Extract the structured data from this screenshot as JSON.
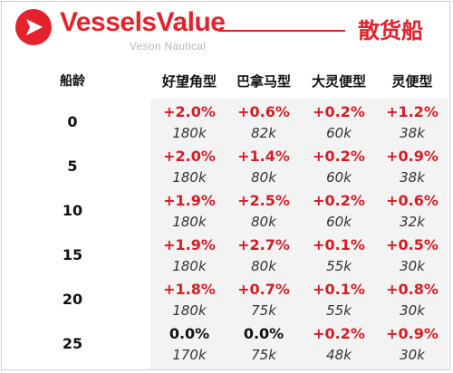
{
  "header": {
    "brand": "VesselsValue",
    "brand_sub": "Veson Nautical",
    "title": "散货船"
  },
  "table": {
    "age_header": "船龄",
    "columns": [
      "好望角型",
      "巴拿马型",
      "大灵便型",
      "灵便型"
    ],
    "rows": [
      {
        "age": "0",
        "changes": [
          "+2.0%",
          "+0.6%",
          "+0.2%",
          "+1.2%"
        ],
        "values": [
          "180k",
          "82k",
          "60k",
          "38k"
        ]
      },
      {
        "age": "5",
        "changes": [
          "+2.0%",
          "+1.4%",
          "+0.2%",
          "+0.9%"
        ],
        "values": [
          "180k",
          "80k",
          "60k",
          "38k"
        ]
      },
      {
        "age": "10",
        "changes": [
          "+1.9%",
          "+2.5%",
          "+0.2%",
          "+0.6%"
        ],
        "values": [
          "180k",
          "80k",
          "60k",
          "32k"
        ]
      },
      {
        "age": "15",
        "changes": [
          "+1.9%",
          "+2.7%",
          "+0.1%",
          "+0.5%"
        ],
        "values": [
          "180k",
          "80k",
          "55k",
          "30k"
        ]
      },
      {
        "age": "20",
        "changes": [
          "+1.8%",
          "+0.7%",
          "+0.1%",
          "+0.8%"
        ],
        "values": [
          "180k",
          "75k",
          "55k",
          "30k"
        ]
      },
      {
        "age": "25",
        "changes": [
          "0.0%",
          "0.0%",
          "+0.2%",
          "+0.9%"
        ],
        "values": [
          "170k",
          "75k",
          "48k",
          "30k"
        ]
      }
    ]
  },
  "colors": {
    "accent": "#e4222c",
    "positive": "#d21e26",
    "neutral": "#111111"
  },
  "icons": {
    "logo": "vesselsvalue-logo-icon"
  }
}
